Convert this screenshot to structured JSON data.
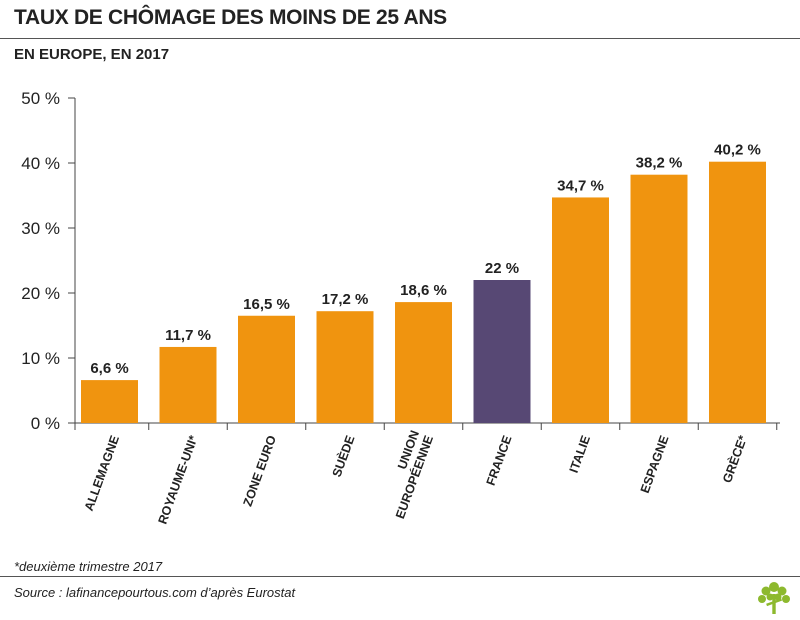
{
  "header": {
    "title": "TAUX DE CHÔMAGE DES MOINS DE 25 ANS",
    "subtitle": "EN EUROPE, EN 2017"
  },
  "chart_data": {
    "type": "bar",
    "categories": [
      "ALLEMAGNE",
      "ROYAUME-UNI*",
      "ZONE EURO",
      "SUÈDE",
      "UNION EUROPÉENNE",
      "FRANCE",
      "ITALIE",
      "ESPAGNE",
      "GRÈCE*"
    ],
    "category_lines": [
      [
        "ALLEMAGNE"
      ],
      [
        "ROYAUME-UNI*"
      ],
      [
        "ZONE EURO"
      ],
      [
        "SUÈDE"
      ],
      [
        "UNION",
        "EUROPÉENNE"
      ],
      [
        "FRANCE"
      ],
      [
        "ITALIE"
      ],
      [
        "ESPAGNE"
      ],
      [
        "GRÈCE*"
      ]
    ],
    "values": [
      6.6,
      11.7,
      16.5,
      17.2,
      18.6,
      22,
      34.7,
      38.2,
      40.2
    ],
    "value_labels": [
      "6,6 %",
      "11,7 %",
      "16,5 %",
      "17,2 %",
      "18,6 %",
      "22 %",
      "34,7 %",
      "38,2 %",
      "40,2 %"
    ],
    "highlight": "FRANCE",
    "ylim": [
      0,
      50
    ],
    "yticks": [
      0,
      10,
      20,
      30,
      40,
      50
    ],
    "ytick_labels": [
      "0 %",
      "10 %",
      "20 %",
      "30 %",
      "40 %",
      "50 %"
    ],
    "colors": {
      "bar": "#F0940F",
      "highlight": "#574874",
      "axis": "#444444"
    },
    "grid": false
  },
  "notes": {
    "footnote": "*deuxième trimestre 2017",
    "source": "Source : lafinancepourtous.com d’après Eurostat"
  },
  "logo": {
    "icon": "tree-icon",
    "color": "#8DB92E"
  }
}
